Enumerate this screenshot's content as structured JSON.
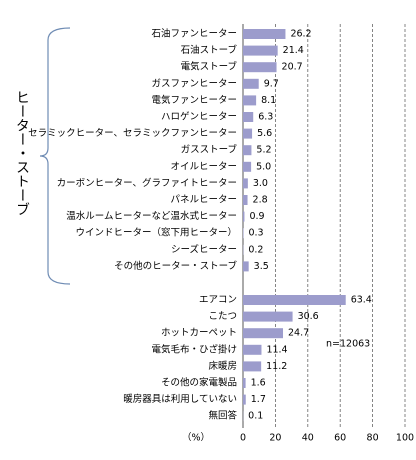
{
  "chart_data": {
    "type": "bar",
    "orientation": "horizontal",
    "group_label": "ヒーター・ストーブ",
    "categories": [
      "石油ファンヒーター",
      "石油ストーブ",
      "電気ストーブ",
      "ガスファンヒーター",
      "電気ファンヒーター",
      "ハロゲンヒーター",
      "セラミックヒーター、セラミックファンヒーター",
      "ガスストーブ",
      "オイルヒーター",
      "カーボンヒーター、グラファイトヒーター",
      "パネルヒーター",
      "温水ルームヒーターなど温水式ヒーター",
      "ウインドヒーター（窓下用ヒーター）",
      "シーズヒーター",
      "その他のヒーター・ストーブ",
      "エアコン",
      "こたつ",
      "ホットカーペット",
      "電気毛布・ひざ掛け",
      "床暖房",
      "その他の家電製品",
      "暖房器具は利用していない",
      "無回答"
    ],
    "values": [
      26.2,
      21.4,
      20.7,
      9.7,
      8.1,
      6.3,
      5.6,
      5.2,
      5.0,
      3.0,
      2.8,
      0.9,
      0.3,
      0.2,
      3.5,
      63.4,
      30.6,
      24.7,
      11.4,
      11.2,
      1.6,
      1.7,
      0.1
    ],
    "value_labels": [
      "26.2",
      "21.4",
      "20.7",
      "9.7",
      "8.1",
      "6.3",
      "5.6",
      "5.2",
      "5.0",
      "3.0",
      "2.8",
      "0.9",
      "0.3",
      "0.2",
      "3.5",
      "63.4",
      "30.6",
      "24.7",
      "11.4",
      "11.2",
      "1.6",
      "1.7",
      "0.1"
    ],
    "color": "#9c9ccc",
    "xlim": [
      0,
      100
    ],
    "xticks": [
      0,
      20,
      40,
      60,
      80,
      100
    ],
    "x_unit": "（%）",
    "annotation": "n=12063",
    "grid": true
  }
}
